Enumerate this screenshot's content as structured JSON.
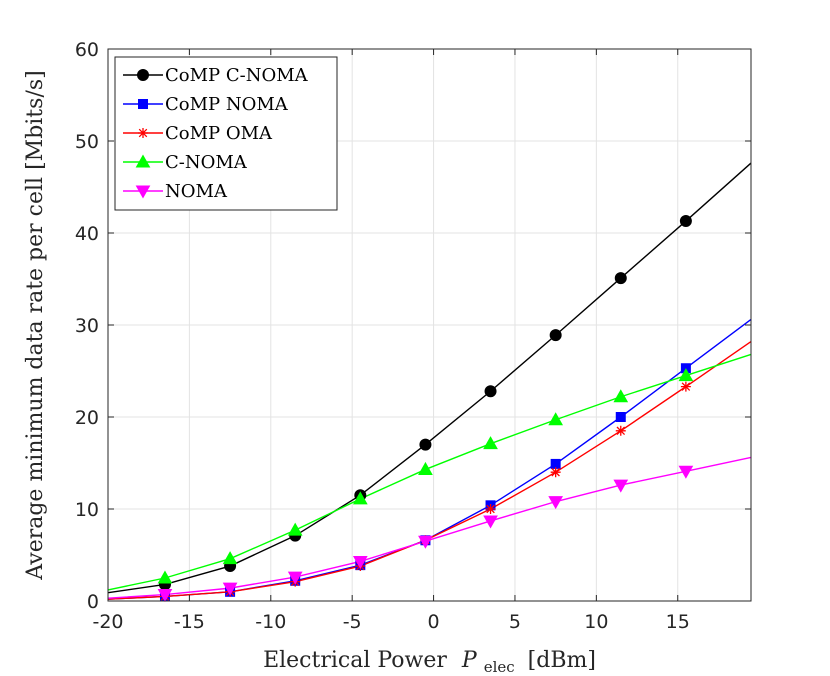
{
  "chart_data": {
    "type": "line",
    "title": "",
    "xlabel": "Electrical Power",
    "xlabel_symbol": "P",
    "xlabel_subscript": "elec",
    "xlabel_unit": "[dBm]",
    "ylabel": "Average minimum data rate per cell [Mbits/s]",
    "xlim": [
      -20,
      19.5
    ],
    "ylim": [
      0,
      60
    ],
    "xticks": [
      -20,
      -15,
      -10,
      -5,
      0,
      5,
      10,
      15
    ],
    "yticks": [
      0,
      10,
      20,
      30,
      40,
      50,
      60
    ],
    "grid": true,
    "legend_position": "top-left",
    "x_curve": [
      -20,
      -16.5,
      -12.5,
      -8.5,
      -4.5,
      -0.5,
      3.5,
      7.5,
      11.5,
      15.5,
      19.5
    ],
    "x_markers": [
      -16.5,
      -12.5,
      -8.5,
      -4.5,
      -0.5,
      3.5,
      7.5,
      11.5,
      15.5
    ],
    "series": [
      {
        "name": "CoMP C-NOMA",
        "color": "#000000",
        "marker": "circle",
        "values": [
          0.9,
          1.8,
          3.8,
          7.1,
          11.5,
          17.0,
          22.8,
          28.9,
          35.1,
          41.3,
          47.6
        ]
      },
      {
        "name": "CoMP NOMA",
        "color": "#0000ff",
        "marker": "square",
        "values": [
          0.2,
          0.5,
          1.0,
          2.2,
          3.9,
          6.6,
          10.4,
          14.9,
          20.0,
          25.3,
          30.6
        ]
      },
      {
        "name": "CoMP OMA",
        "color": "#ff0000",
        "marker": "asterisk",
        "values": [
          0.2,
          0.5,
          1.0,
          2.1,
          3.8,
          6.6,
          10.0,
          14.0,
          18.5,
          23.3,
          28.2
        ]
      },
      {
        "name": "C-NOMA",
        "color": "#00ff00",
        "marker": "triangle-up",
        "values": [
          1.2,
          2.5,
          4.6,
          7.7,
          11.1,
          14.3,
          17.1,
          19.7,
          22.2,
          24.5,
          26.8
        ]
      },
      {
        "name": "NOMA",
        "color": "#ff00ff",
        "marker": "triangle-down",
        "values": [
          0.3,
          0.7,
          1.4,
          2.6,
          4.3,
          6.5,
          8.7,
          10.8,
          12.6,
          14.1,
          15.6
        ]
      }
    ]
  }
}
